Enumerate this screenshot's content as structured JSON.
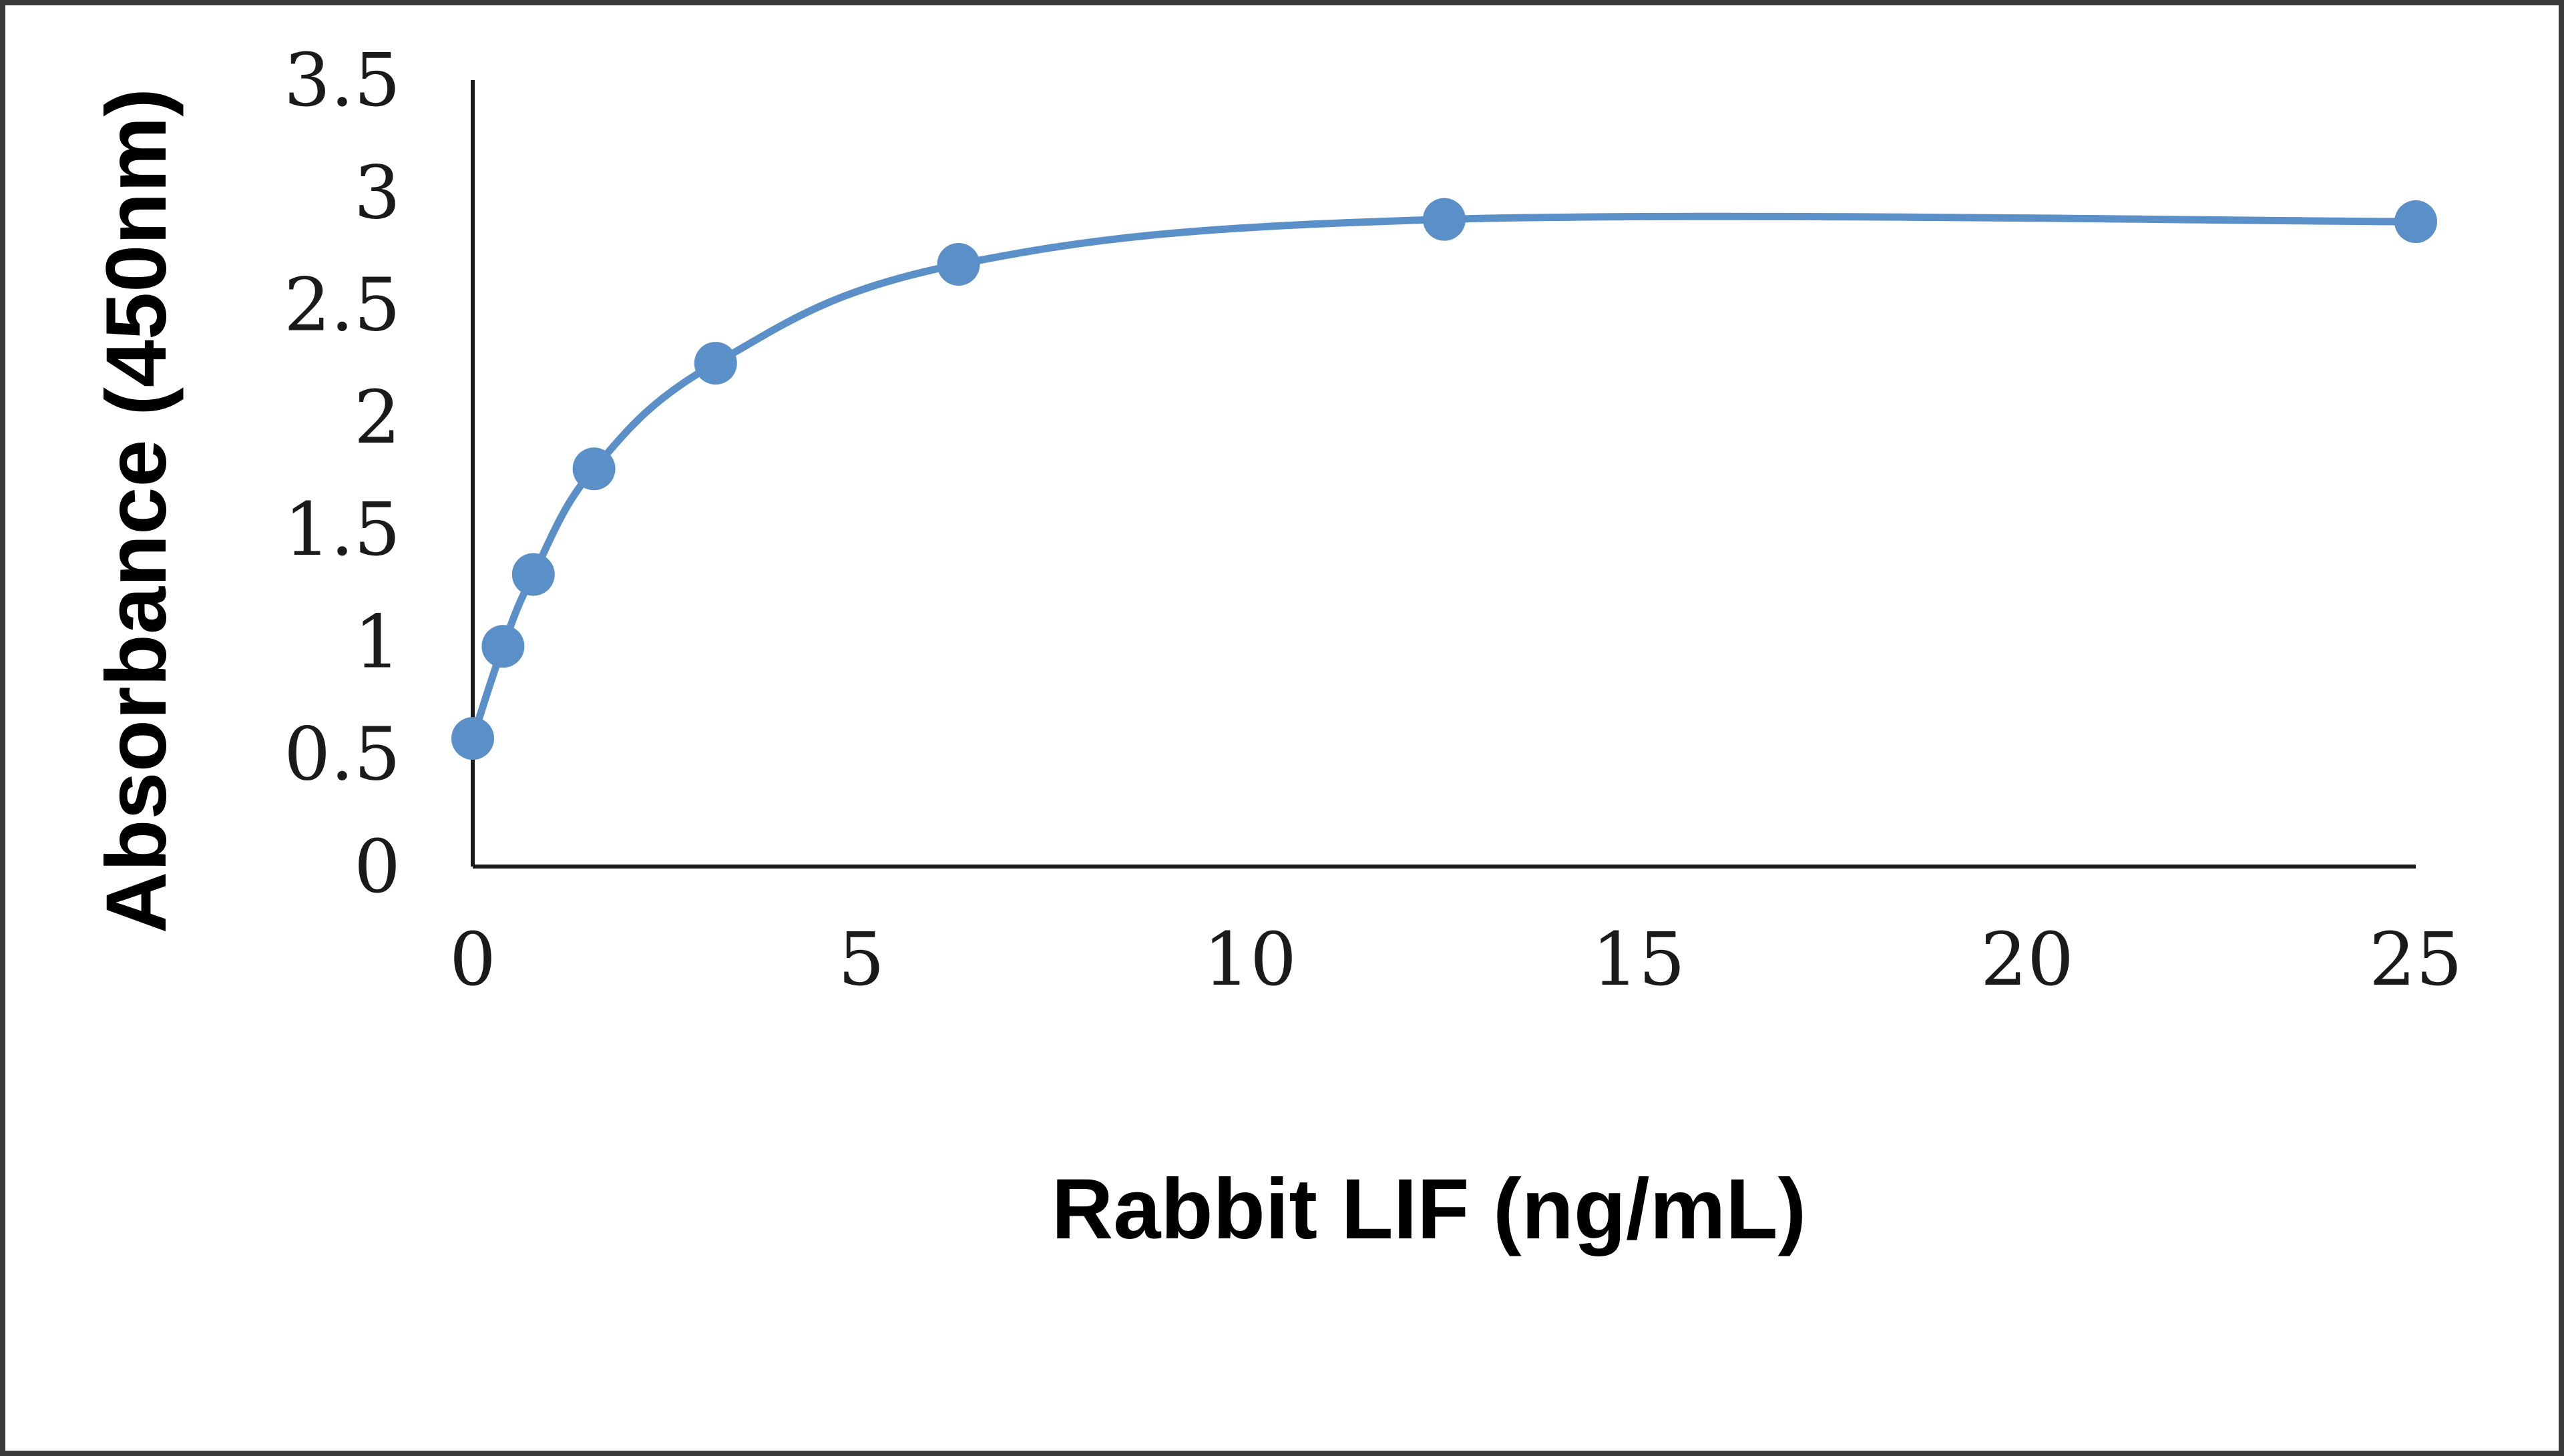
{
  "chart_data": {
    "type": "scatter",
    "title": "",
    "xlabel": "Rabbit LIF (ng/mL)",
    "ylabel": "Absorbance (450nm)",
    "xlim": [
      0,
      25
    ],
    "ylim": [
      0,
      3.5
    ],
    "x_ticks": [
      "0",
      "5",
      "10",
      "15",
      "20",
      "25"
    ],
    "y_ticks": [
      "0",
      "0.5",
      "1",
      "1.5",
      "2",
      "2.5",
      "3",
      "3.5"
    ],
    "grid": false,
    "legend": "none",
    "line": "smooth",
    "series": [
      {
        "color": "#5b8fc7",
        "x": [
          0,
          0.39,
          0.78,
          1.56,
          3.125,
          6.25,
          12.5,
          25
        ],
        "y": [
          0.57,
          0.98,
          1.3,
          1.77,
          2.24,
          2.68,
          2.88,
          2.87
        ]
      }
    ]
  }
}
